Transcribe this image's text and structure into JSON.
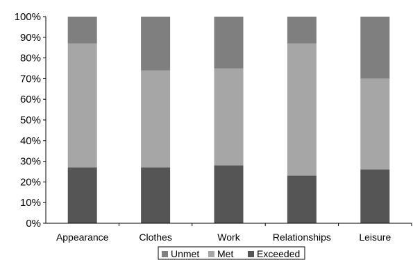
{
  "chart_data": {
    "type": "bar",
    "stacked": true,
    "percent_stacked": true,
    "title": "",
    "xlabel": "",
    "ylabel": "",
    "ylim": [
      0,
      100
    ],
    "y_tick_labels": [
      "0%",
      "10%",
      "20%",
      "30%",
      "40%",
      "50%",
      "60%",
      "70%",
      "80%",
      "90%",
      "100%"
    ],
    "categories": [
      "Appearance",
      "Clothes",
      "Work",
      "Relationships",
      "Leisure"
    ],
    "series": [
      {
        "name": "Exceeded",
        "values": [
          27,
          27,
          28,
          23,
          26
        ]
      },
      {
        "name": "Met",
        "values": [
          60,
          47,
          47,
          64,
          44
        ]
      },
      {
        "name": "Unmet",
        "values": [
          13,
          26,
          25,
          13,
          30
        ]
      }
    ],
    "legend": {
      "placement": "bottom",
      "order": [
        "Unmet",
        "Met",
        "Exceeded"
      ]
    },
    "colors": {
      "Exceeded": "#555555",
      "Met": "#a6a6a6",
      "Unmet": "#7f7f7f",
      "axis": "#000000"
    },
    "grid": false
  }
}
